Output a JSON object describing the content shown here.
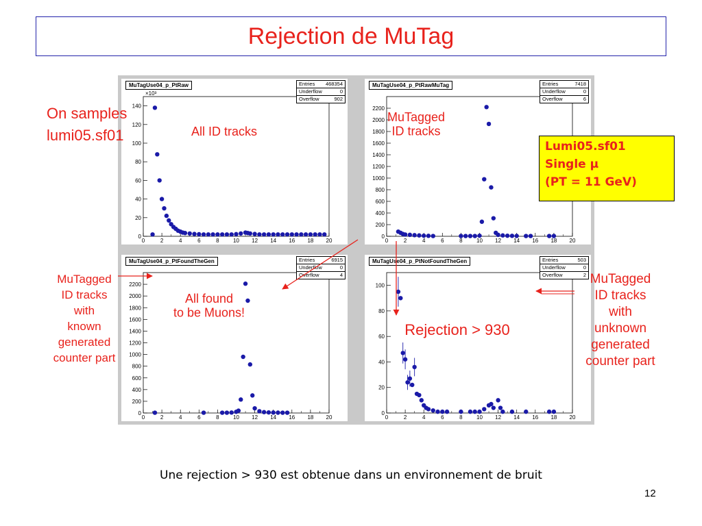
{
  "title": "Rejection de MuTag",
  "left_note": [
    "On samples",
    "lumi05.sf01"
  ],
  "yellow_box": [
    "Lumi05.sf01",
    "Single μ",
    "(PT = 11 GeV)"
  ],
  "side_left": [
    "MuTagged",
    "ID tracks",
    "with",
    "known",
    "generated",
    "counter part"
  ],
  "side_right": [
    "MuTagged",
    "ID tracks",
    "with",
    "unknown",
    "generated",
    "counter part"
  ],
  "caption": "Une rejection > 930 est obtenue dans un environnement de bruit",
  "page_number": "12",
  "colors": {
    "accent_red": "#e8221c",
    "marker_blue": "#1a1aa8",
    "box_yellow": "#ffff00"
  },
  "chart_data": [
    {
      "type": "scatter",
      "hist_name": "MuTagUse04_p_PtRaw",
      "annotation": "All ID tracks",
      "stats": [
        [
          "Entries",
          "468354"
        ],
        [
          "Underflow",
          "0"
        ],
        [
          "Overflow",
          "902"
        ]
      ],
      "y_exponent": "×10³",
      "xlim": [
        0,
        20
      ],
      "ylim": [
        0,
        150
      ],
      "x_ticks": [
        0,
        2,
        4,
        6,
        8,
        10,
        12,
        14,
        16,
        18,
        20
      ],
      "y_ticks": [
        0,
        20,
        40,
        60,
        80,
        100,
        120,
        140
      ],
      "points": [
        [
          1,
          2
        ],
        [
          1.25,
          138
        ],
        [
          1.5,
          88
        ],
        [
          1.75,
          60
        ],
        [
          2,
          40
        ],
        [
          2.25,
          30
        ],
        [
          2.5,
          22
        ],
        [
          2.75,
          17
        ],
        [
          3,
          13
        ],
        [
          3.25,
          10
        ],
        [
          3.5,
          8
        ],
        [
          3.75,
          6
        ],
        [
          4,
          5
        ],
        [
          4.25,
          4
        ],
        [
          4.5,
          3.5
        ],
        [
          5,
          3
        ],
        [
          5.5,
          2.5
        ],
        [
          6,
          2.2
        ],
        [
          6.5,
          2
        ],
        [
          7,
          2
        ],
        [
          7.5,
          2
        ],
        [
          8,
          2
        ],
        [
          8.5,
          2
        ],
        [
          9,
          2
        ],
        [
          9.5,
          2
        ],
        [
          10,
          2.3
        ],
        [
          10.5,
          3
        ],
        [
          11,
          4
        ],
        [
          11.25,
          3.5
        ],
        [
          11.5,
          3
        ],
        [
          12,
          2.5
        ],
        [
          12.5,
          2
        ],
        [
          13,
          2
        ],
        [
          13.5,
          2
        ],
        [
          14,
          2
        ],
        [
          14.5,
          2
        ],
        [
          15,
          2
        ],
        [
          15.5,
          2
        ],
        [
          16,
          2
        ],
        [
          16.5,
          2
        ],
        [
          17,
          2
        ],
        [
          17.5,
          2
        ],
        [
          18,
          2
        ],
        [
          18.5,
          2
        ],
        [
          19,
          2
        ],
        [
          19.5,
          2
        ]
      ]
    },
    {
      "type": "scatter",
      "hist_name": "MuTagUse04_p_PtRawMuTag",
      "annotation": "MuTagged\nID tracks",
      "stats": [
        [
          "Entries",
          "7418"
        ],
        [
          "Underflow",
          "0"
        ],
        [
          "Overflow",
          "6"
        ]
      ],
      "y_exponent": "",
      "xlim": [
        0,
        20
      ],
      "ylim": [
        0,
        2400
      ],
      "x_ticks": [
        0,
        2,
        4,
        6,
        8,
        10,
        12,
        14,
        16,
        18,
        20
      ],
      "y_ticks": [
        0,
        200,
        400,
        600,
        800,
        1000,
        1200,
        1400,
        1600,
        1800,
        2000,
        2200
      ],
      "points": [
        [
          1.25,
          80
        ],
        [
          1.5,
          60
        ],
        [
          1.75,
          40
        ],
        [
          2,
          30
        ],
        [
          2.5,
          25
        ],
        [
          3,
          20
        ],
        [
          3.5,
          15
        ],
        [
          4,
          10
        ],
        [
          4.5,
          8
        ],
        [
          5,
          5
        ],
        [
          8,
          5
        ],
        [
          8.5,
          5
        ],
        [
          9,
          5
        ],
        [
          9.5,
          5
        ],
        [
          10,
          10
        ],
        [
          10.25,
          250
        ],
        [
          10.5,
          980
        ],
        [
          10.75,
          2220
        ],
        [
          11,
          1930
        ],
        [
          11.25,
          840
        ],
        [
          11.5,
          310
        ],
        [
          11.75,
          60
        ],
        [
          12,
          25
        ],
        [
          12.5,
          15
        ],
        [
          13,
          10
        ],
        [
          13.5,
          8
        ],
        [
          14,
          6
        ],
        [
          15,
          5
        ],
        [
          15.5,
          5
        ],
        [
          17.5,
          5
        ],
        [
          18,
          5
        ]
      ]
    },
    {
      "type": "scatter",
      "hist_name": "MuTagUse04_p_PtFoundTheGen",
      "annotation": "All found\nto be Muons!",
      "stats": [
        [
          "Entries",
          "6915"
        ],
        [
          "Underflow",
          "0"
        ],
        [
          "Overflow",
          "4"
        ]
      ],
      "y_exponent": "",
      "xlim": [
        0,
        20
      ],
      "ylim": [
        0,
        2400
      ],
      "x_ticks": [
        0,
        2,
        4,
        6,
        8,
        10,
        12,
        14,
        16,
        18,
        20
      ],
      "y_ticks": [
        0,
        200,
        400,
        600,
        800,
        1000,
        1200,
        1400,
        1600,
        1800,
        2000,
        2200
      ],
      "points": [
        [
          1.25,
          5
        ],
        [
          6.5,
          5
        ],
        [
          8.5,
          5
        ],
        [
          9,
          5
        ],
        [
          9.5,
          8
        ],
        [
          10,
          20
        ],
        [
          10.25,
          40
        ],
        [
          10.5,
          230
        ],
        [
          10.75,
          960
        ],
        [
          11,
          2210
        ],
        [
          11.25,
          1920
        ],
        [
          11.5,
          830
        ],
        [
          11.75,
          300
        ],
        [
          12,
          80
        ],
        [
          12.5,
          30
        ],
        [
          13,
          15
        ],
        [
          13.5,
          10
        ],
        [
          14,
          8
        ],
        [
          14.5,
          6
        ],
        [
          15,
          5
        ],
        [
          15.5,
          5
        ]
      ]
    },
    {
      "type": "scatter",
      "hist_name": "MuTagUse04_p_PtNotFoundTheGen",
      "annotation": "Rejection > 930",
      "stats": [
        [
          "Entries",
          "503"
        ],
        [
          "Underflow",
          "0"
        ],
        [
          "Overflow",
          "2"
        ]
      ],
      "y_exponent": "",
      "xlim": [
        0,
        20
      ],
      "ylim": [
        0,
        110
      ],
      "x_ticks": [
        0,
        2,
        4,
        6,
        8,
        10,
        12,
        14,
        16,
        18,
        20
      ],
      "y_ticks": [
        0,
        20,
        40,
        60,
        80,
        100
      ],
      "points": [
        [
          1.25,
          95
        ],
        [
          1.5,
          90
        ],
        [
          1.75,
          47
        ],
        [
          2,
          42
        ],
        [
          2.25,
          24
        ],
        [
          2.5,
          27
        ],
        [
          2.75,
          22
        ],
        [
          3,
          36
        ],
        [
          3.25,
          15
        ],
        [
          3.5,
          14
        ],
        [
          3.75,
          10
        ],
        [
          4,
          6
        ],
        [
          4.25,
          4
        ],
        [
          4.5,
          3
        ],
        [
          5,
          2
        ],
        [
          5.5,
          1
        ],
        [
          6,
          1
        ],
        [
          6.5,
          1
        ],
        [
          8,
          1
        ],
        [
          9,
          1
        ],
        [
          9.5,
          1
        ],
        [
          10,
          1
        ],
        [
          10.5,
          3
        ],
        [
          11,
          6
        ],
        [
          11.25,
          7
        ],
        [
          11.5,
          4
        ],
        [
          12,
          10
        ],
        [
          12.25,
          4
        ],
        [
          12.5,
          1
        ],
        [
          13.5,
          1
        ],
        [
          15,
          1
        ],
        [
          17.5,
          1
        ],
        [
          18,
          1
        ]
      ],
      "error_points": [
        1.25,
        1.75,
        2,
        2.25,
        2.5,
        3
      ]
    }
  ]
}
